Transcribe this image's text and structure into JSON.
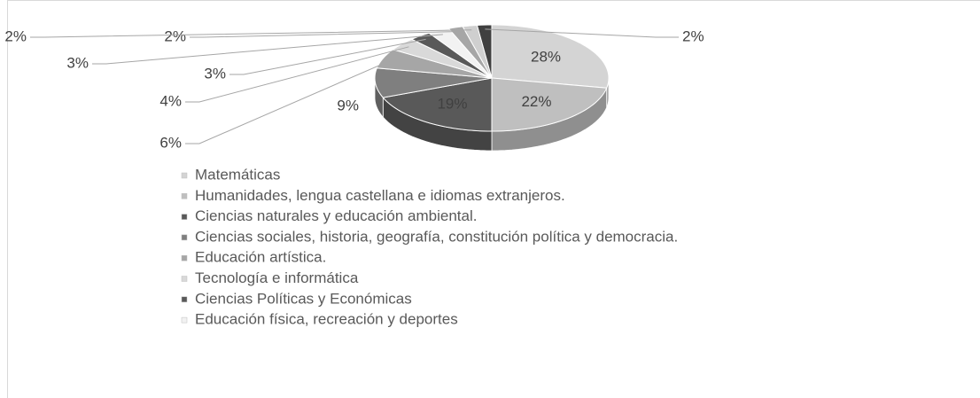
{
  "chart_data": {
    "type": "pie3d",
    "categories": [
      "Matemáticas",
      "Humanidades, lengua castellana e idiomas extranjeros.",
      "Ciencias naturales y educación ambiental.",
      "Ciencias sociales, historia, geografía, constitución política y democracia.",
      "Educación artística.",
      "Tecnología e informática",
      "Ciencias Políticas y Económicas",
      "Educación física, recreación y deportes",
      null,
      null,
      null
    ],
    "values": [
      28,
      22,
      19,
      9,
      6,
      4,
      3,
      3,
      2,
      2,
      2
    ],
    "value_labels": [
      "28%",
      "22%",
      "19%",
      "9%",
      "6%",
      "4%",
      "3%",
      "3%",
      "2%",
      "2%",
      "2%"
    ],
    "colors": [
      "#d4d4d4",
      "#bfbfbf",
      "#595959",
      "#7f7f7f",
      "#a6a6a6",
      "#d9d9d9",
      "#595959",
      "#f2f2f2",
      "#a6a6a6",
      "#cfcfcf",
      "#404040"
    ],
    "legend": "bottom"
  }
}
